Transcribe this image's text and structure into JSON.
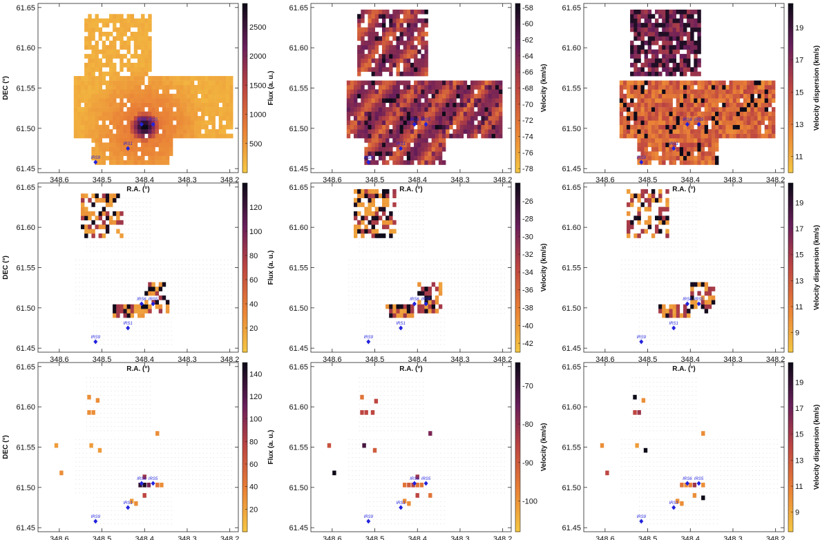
{
  "chart_data": {
    "type": "heatmap",
    "xlabel": "R.A. (°)",
    "ylabel": "DEC (°)",
    "xlim": [
      348.65,
      348.18
    ],
    "ylim": [
      61.445,
      61.655
    ],
    "xticks": [
      348.6,
      348.5,
      348.4,
      348.3,
      348.2
    ],
    "xtick_labels": [
      "348.6",
      "348.5",
      "348.4",
      "348.3",
      "348.2"
    ],
    "yticks": [
      61.45,
      61.5,
      61.55,
      61.6,
      61.65
    ],
    "ytick_labels": [
      "61.45",
      "61.50",
      "61.55",
      "61.60",
      "61.65"
    ],
    "colormap_low": "#f5c542",
    "colormap_mid": "#c45a3a",
    "colormap_high": "#120c1e",
    "source_color": "#2222dd",
    "sources": [
      {
        "name": "IRS9",
        "ra": 348.515,
        "dec": 61.458
      },
      {
        "name": "IRS1",
        "ra": 348.439,
        "dec": 61.475
      },
      {
        "name": "IRS6",
        "ra": 348.407,
        "dec": 61.505
      },
      {
        "name": "IRS5",
        "ra": 348.38,
        "dec": 61.505
      }
    ],
    "colorbars": [
      {
        "label": "Flux (a. u.)",
        "range": [
          0,
          2900
        ],
        "ticks": [
          "2500",
          "2000",
          "1500",
          "1000",
          "500"
        ],
        "tickvals": [
          2500,
          2000,
          1500,
          1000,
          500
        ]
      },
      {
        "label": "Velocity (km/s)",
        "range": [
          -78.5,
          -57.5
        ],
        "ticks": [
          "-58",
          "-60",
          "-62",
          "-64",
          "-66",
          "-68",
          "-70",
          "-72",
          "-74",
          "-76",
          "-78"
        ],
        "tickvals": [
          -58,
          -60,
          -62,
          -64,
          -66,
          -68,
          -70,
          -72,
          -74,
          -76,
          -78
        ]
      },
      {
        "label": "Velocity dispersion (km/s)",
        "range": [
          10,
          20.5
        ],
        "ticks": [
          "19",
          "17",
          "15",
          "13",
          "11"
        ],
        "tickvals": [
          19,
          17,
          15,
          13,
          11
        ]
      },
      {
        "label": "Flux (a. u.)",
        "range": [
          0,
          140
        ],
        "ticks": [
          "120",
          "100",
          "80",
          "60",
          "40",
          "20"
        ],
        "tickvals": [
          120,
          100,
          80,
          60,
          40,
          20
        ]
      },
      {
        "label": "Velocity (km/s)",
        "range": [
          -43,
          -24
        ],
        "ticks": [
          "-26",
          "-28",
          "-30",
          "-32",
          "-34",
          "-36",
          "-38",
          "-40",
          "-42"
        ],
        "tickvals": [
          -26,
          -28,
          -30,
          -32,
          -34,
          -36,
          -38,
          -40,
          -42
        ]
      },
      {
        "label": "Velocity dispersion (km/s)",
        "range": [
          7.5,
          20.5
        ],
        "ticks": [
          "19",
          "17",
          "15",
          "13",
          "11",
          "9"
        ],
        "tickvals": [
          19,
          17,
          15,
          13,
          11,
          9
        ]
      },
      {
        "label": "Flux (a. u.)",
        "range": [
          0,
          150
        ],
        "ticks": [
          "140",
          "120",
          "100",
          "80",
          "60",
          "40",
          "20"
        ],
        "tickvals": [
          140,
          120,
          100,
          80,
          60,
          40,
          20
        ]
      },
      {
        "label": "Velocity (km/s)",
        "range": [
          -108,
          -64
        ],
        "ticks": [
          "-70",
          "-80",
          "-90",
          "-100"
        ],
        "tickvals": [
          -70,
          -80,
          -90,
          -100
        ]
      },
      {
        "label": "Velocity dispersion (km/s)",
        "range": [
          7.5,
          20.5
        ],
        "ticks": [
          "19",
          "17",
          "15",
          "13",
          "11",
          "9"
        ],
        "tickvals": [
          19,
          17,
          15,
          13,
          11,
          9
        ]
      }
    ],
    "panels": [
      {
        "row": 1,
        "col": 1,
        "component": 1,
        "quantity": "Flux (a. u.)",
        "pattern": "flux-bright",
        "colorbar": 0,
        "regions": [
          {
            "ra_min": 348.565,
            "ra_max": 348.195,
            "dec_min": 61.488,
            "dec_max": 61.562,
            "cover": 0.95
          },
          {
            "ra_min": 348.525,
            "ra_max": 348.335,
            "dec_min": 61.455,
            "dec_max": 61.53,
            "cover": 0.9
          },
          {
            "ra_min": 348.54,
            "ra_max": 348.38,
            "dec_min": 61.565,
            "dec_max": 61.64,
            "cover": 0.8
          }
        ]
      },
      {
        "row": 1,
        "col": 2,
        "component": 1,
        "quantity": "Velocity (km/s)",
        "pattern": "vel",
        "colorbar": 1,
        "regions": [
          {
            "ra_min": 348.565,
            "ra_max": 348.2,
            "dec_min": 61.488,
            "dec_max": 61.56,
            "cover": 0.96
          },
          {
            "ra_min": 348.525,
            "ra_max": 348.335,
            "dec_min": 61.455,
            "dec_max": 61.53,
            "cover": 0.92
          },
          {
            "ra_min": 348.54,
            "ra_max": 348.375,
            "dec_min": 61.565,
            "dec_max": 61.645,
            "cover": 0.85
          }
        ]
      },
      {
        "row": 1,
        "col": 3,
        "component": 1,
        "quantity": "Velocity dispersion (km/s)",
        "pattern": "disp",
        "colorbar": 2,
        "regions": [
          {
            "ra_min": 348.565,
            "ra_max": 348.2,
            "dec_min": 61.488,
            "dec_max": 61.56,
            "cover": 0.96
          },
          {
            "ra_min": 348.525,
            "ra_max": 348.335,
            "dec_min": 61.455,
            "dec_max": 61.53,
            "cover": 0.92
          },
          {
            "ra_min": 348.54,
            "ra_max": 348.375,
            "dec_min": 61.565,
            "dec_max": 61.645,
            "cover": 0.85
          }
        ]
      },
      {
        "row": 2,
        "col": 1,
        "component": 2,
        "quantity": "Flux (a. u.)",
        "pattern": "mixed",
        "colorbar": 3,
        "regions": [
          {
            "ra_min": 348.55,
            "ra_max": 348.45,
            "dec_min": 61.585,
            "dec_max": 61.64,
            "cover": 0.6
          },
          {
            "ra_min": 348.475,
            "ra_max": 348.4,
            "dec_min": 61.485,
            "dec_max": 61.505,
            "cover": 0.8
          },
          {
            "ra_min": 348.4,
            "ra_max": 348.345,
            "dec_min": 61.495,
            "dec_max": 61.53,
            "cover": 0.6
          }
        ]
      },
      {
        "row": 2,
        "col": 2,
        "component": 2,
        "quantity": "Velocity (km/s)",
        "pattern": "mixed",
        "colorbar": 4,
        "regions": [
          {
            "ra_min": 348.55,
            "ra_max": 348.45,
            "dec_min": 61.585,
            "dec_max": 61.645,
            "cover": 0.55
          },
          {
            "ra_min": 348.475,
            "ra_max": 348.4,
            "dec_min": 61.485,
            "dec_max": 61.505,
            "cover": 0.8
          },
          {
            "ra_min": 348.4,
            "ra_max": 348.345,
            "dec_min": 61.495,
            "dec_max": 61.53,
            "cover": 0.6
          }
        ]
      },
      {
        "row": 2,
        "col": 3,
        "component": 2,
        "quantity": "Velocity dispersion (km/s)",
        "pattern": "mixed",
        "colorbar": 5,
        "regions": [
          {
            "ra_min": 348.55,
            "ra_max": 348.45,
            "dec_min": 61.585,
            "dec_max": 61.645,
            "cover": 0.55
          },
          {
            "ra_min": 348.475,
            "ra_max": 348.4,
            "dec_min": 61.485,
            "dec_max": 61.505,
            "cover": 0.8
          },
          {
            "ra_min": 348.4,
            "ra_max": 348.345,
            "dec_min": 61.495,
            "dec_max": 61.53,
            "cover": 0.6
          }
        ]
      },
      {
        "row": 3,
        "col": 1,
        "component": 3,
        "quantity": "Flux (a. u.)",
        "pattern": "sparse",
        "colorbar": 6,
        "points": [
          [
            348.53,
            61.612,
            0.2
          ],
          [
            348.51,
            61.608,
            0.2
          ],
          [
            348.52,
            61.593,
            0.2
          ],
          [
            348.53,
            61.593,
            0.2
          ],
          [
            348.607,
            61.552,
            0.15
          ],
          [
            348.595,
            61.518,
            0.2
          ],
          [
            348.525,
            61.552,
            0.15
          ],
          [
            348.505,
            61.546,
            0.15
          ],
          [
            348.37,
            61.567,
            0.2
          ],
          [
            348.4,
            61.513,
            0.6
          ],
          [
            348.41,
            61.503,
            0.9
          ],
          [
            348.4,
            61.503,
            0.95
          ],
          [
            348.39,
            61.503,
            0.7
          ],
          [
            348.37,
            61.503,
            0.3
          ],
          [
            348.4,
            61.49,
            0.5
          ],
          [
            348.42,
            61.48,
            0.2
          ],
          [
            348.43,
            61.483,
            0.15
          ],
          [
            348.36,
            61.503,
            0.2
          ]
        ]
      },
      {
        "row": 3,
        "col": 2,
        "component": 3,
        "quantity": "Velocity (km/s)",
        "pattern": "sparse",
        "colorbar": 7,
        "points": [
          [
            348.53,
            61.612,
            0.3
          ],
          [
            348.52,
            61.593,
            0.5
          ],
          [
            348.53,
            61.593,
            0.5
          ],
          [
            348.497,
            61.607,
            0.5
          ],
          [
            348.505,
            61.593,
            0.5
          ],
          [
            348.607,
            61.552,
            0.45
          ],
          [
            348.595,
            61.518,
            1.0
          ],
          [
            348.525,
            61.552,
            0.85
          ],
          [
            348.5,
            61.546,
            0.4
          ],
          [
            348.37,
            61.567,
            0.7
          ],
          [
            348.43,
            61.503,
            0.3
          ],
          [
            348.42,
            61.503,
            0.4
          ],
          [
            348.41,
            61.503,
            0.5
          ],
          [
            348.4,
            61.503,
            0.3
          ],
          [
            348.39,
            61.503,
            0.3
          ],
          [
            348.4,
            61.513,
            0.6
          ],
          [
            348.4,
            61.49,
            0.5
          ],
          [
            348.42,
            61.48,
            0.2
          ],
          [
            348.43,
            61.483,
            0.2
          ],
          [
            348.37,
            61.49,
            0.3
          ]
        ]
      },
      {
        "row": 3,
        "col": 3,
        "component": 3,
        "quantity": "Velocity dispersion (km/s)",
        "pattern": "sparse",
        "colorbar": 8,
        "points": [
          [
            348.53,
            61.612,
            1.0
          ],
          [
            348.51,
            61.608,
            0.2
          ],
          [
            348.53,
            61.593,
            0.5
          ],
          [
            348.52,
            61.593,
            0.6
          ],
          [
            348.607,
            61.552,
            0.2
          ],
          [
            348.595,
            61.518,
            0.5
          ],
          [
            348.525,
            61.552,
            0.15
          ],
          [
            348.505,
            61.546,
            1.0
          ],
          [
            348.37,
            61.567,
            0.2
          ],
          [
            348.42,
            61.503,
            0.3
          ],
          [
            348.41,
            61.503,
            0.2
          ],
          [
            348.4,
            61.503,
            0.25
          ],
          [
            348.39,
            61.503,
            0.6
          ],
          [
            348.37,
            61.503,
            0.2
          ],
          [
            348.42,
            61.48,
            0.2
          ],
          [
            348.43,
            61.483,
            0.2
          ],
          [
            348.37,
            61.487,
            1.0
          ],
          [
            348.39,
            61.49,
            0.2
          ]
        ]
      }
    ]
  }
}
